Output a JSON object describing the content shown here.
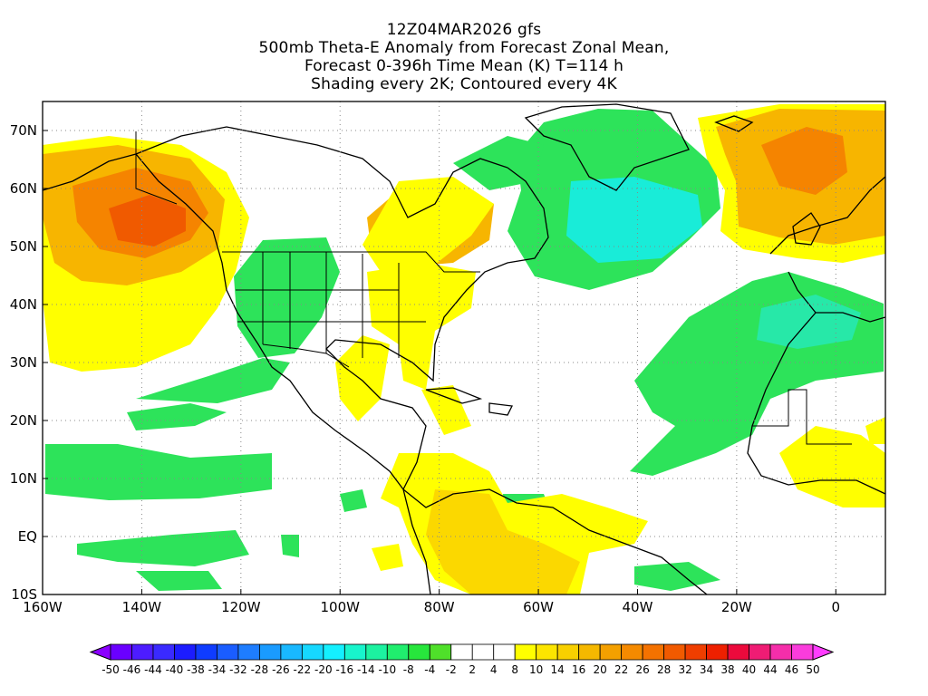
{
  "title": {
    "line1": "12Z04MAR2026 gfs",
    "line2": "500mb Theta-E Anomaly from Forecast Zonal Mean,",
    "line3": "Forecast 0-396h Time Mean (K) T=114 h",
    "line4": "Shading every 2K; Contoured every 4K"
  },
  "map": {
    "lon_range": [
      -160,
      10
    ],
    "lat_range": [
      -10,
      75
    ],
    "lon_ticks": [
      "160W",
      "140W",
      "120W",
      "100W",
      "80W",
      "60W",
      "40W",
      "20W",
      "0"
    ],
    "lat_ticks": [
      "10S",
      "EQ",
      "10N",
      "20N",
      "30N",
      "40N",
      "50N",
      "60N",
      "70N"
    ],
    "grid": "dotted"
  },
  "colorbar": {
    "labels": [
      "-50",
      "-46",
      "-44",
      "-40",
      "-38",
      "-34",
      "-32",
      "-28",
      "-26",
      "-22",
      "-20",
      "-16",
      "-14",
      "-10",
      "-8",
      "-4",
      "-2",
      "2",
      "4",
      "8",
      "10",
      "14",
      "16",
      "20",
      "22",
      "26",
      "28",
      "32",
      "34",
      "38",
      "40",
      "44",
      "46",
      "50"
    ],
    "colors": [
      "#8a00ff",
      "#6a00ff",
      "#4d1cff",
      "#3a2aff",
      "#1c1cff",
      "#0f3cff",
      "#1a5dff",
      "#1e7dff",
      "#1a9bff",
      "#19b8ff",
      "#16d8ff",
      "#14f0ff",
      "#18f5cc",
      "#1cf2a0",
      "#20ee6e",
      "#27e63c",
      "#4fe02a",
      "#ffffff",
      "#ffffff",
      "#ffffff",
      "#ffff00",
      "#fce500",
      "#f8d000",
      "#f5b800",
      "#f4a000",
      "#f58a00",
      "#f47200",
      "#f15a00",
      "#ef3e00",
      "#ee2000",
      "#ec0a3c",
      "#ef1c74",
      "#f52eaa",
      "#fa3cdc",
      "#ff3cff"
    ]
  }
}
